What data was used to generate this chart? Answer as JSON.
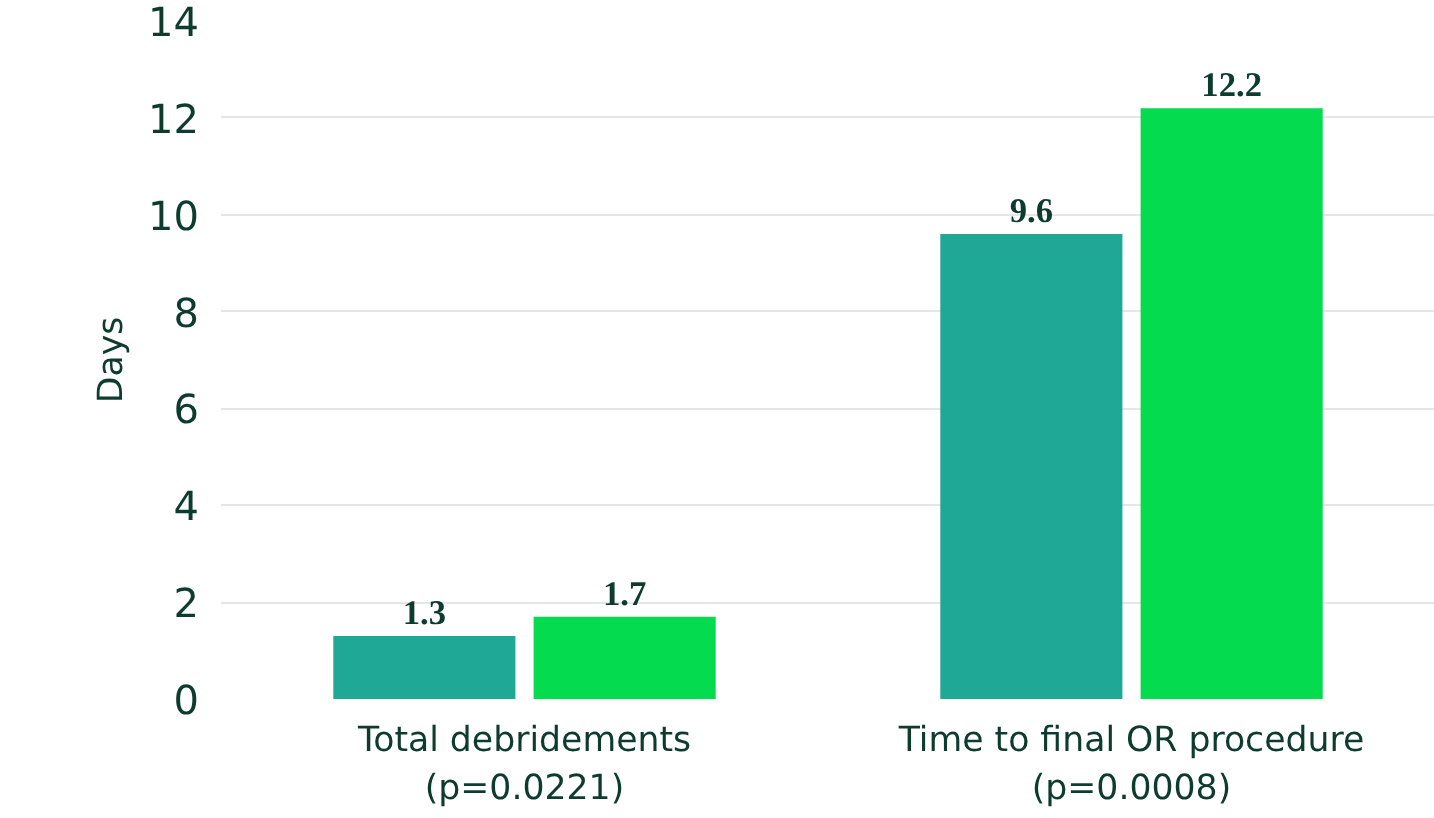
{
  "chart_data": {
    "type": "bar",
    "ylabel": "Days",
    "categories": [
      "Total debridements\n(p=0.0221)",
      "Time to final OR procedure\n(p=0.0008)"
    ],
    "series": [
      {
        "color": "#1fa896",
        "values": [
          1.3,
          9.6
        ]
      },
      {
        "color": "#05db4f",
        "values": [
          1.7,
          12.2
        ]
      }
    ],
    "ylim": [
      0,
      14
    ],
    "yticks": [
      0,
      2,
      4,
      6,
      8,
      10,
      12,
      14
    ],
    "grid": "y",
    "data_labels": true
  }
}
